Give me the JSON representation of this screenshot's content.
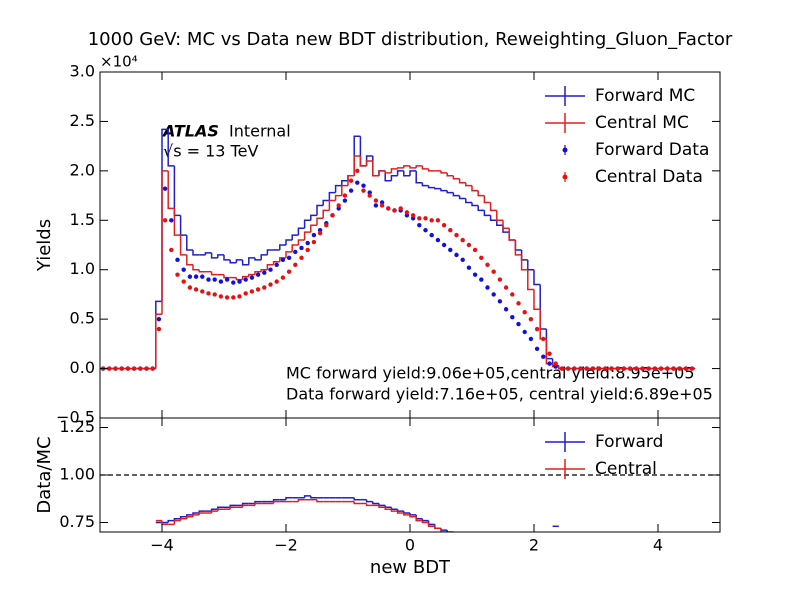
{
  "chart_data": [
    {
      "type": "histogram",
      "title": "1000 GeV: MC vs Data new BDT distribution, Reweighting_Gluon_Factor",
      "y_offset_label": "×10⁴",
      "ylabel": "Yields",
      "atlas_label": "ATLAS",
      "atlas_status": "Internal",
      "energy_label": "√s = 13 TeV",
      "annotations": [
        "MC forward yield:9.06e+05,central yield:8.95e+05",
        "Data forward yield:7.16e+05, central yield:6.89e+05"
      ],
      "legend": "upper right",
      "xlim": [
        -5,
        5
      ],
      "xticks": [
        -4,
        -2,
        0,
        2,
        4
      ],
      "ylim": [
        -0.5,
        3.0
      ],
      "yticks": [
        {
          "value": -0.5,
          "label": "−0.5"
        },
        {
          "value": 0,
          "label": "0.0"
        },
        0.5,
        {
          "value": 1,
          "label": "1.0"
        },
        1.5,
        {
          "value": 2,
          "label": "2.0"
        },
        2.5,
        {
          "value": 3,
          "label": "3.0"
        }
      ],
      "bins": [
        -5,
        -4.9,
        -4.8,
        -4.7,
        -4.6,
        -4.5,
        -4.4,
        -4.3,
        -4.2,
        -4.1,
        -4,
        -3.9,
        -3.8,
        -3.7,
        -3.6,
        -3.5,
        -3.4,
        -3.3,
        -3.2,
        -3.1,
        -3,
        -2.9,
        -2.8,
        -2.7,
        -2.6,
        -2.5,
        -2.4,
        -2.3,
        -2.2,
        -2.1,
        -2,
        -1.9,
        -1.8,
        -1.7,
        -1.6,
        -1.5,
        -1.4,
        -1.3,
        -1.2,
        -1.1,
        -1,
        -0.9,
        -0.8,
        -0.7,
        -0.6,
        -0.5,
        -0.4,
        -0.3,
        -0.2,
        -0.1,
        0,
        0.1,
        0.2,
        0.3,
        0.4,
        0.5,
        0.6,
        0.7,
        0.8,
        0.9,
        1,
        1.1,
        1.2,
        1.3,
        1.4,
        1.5,
        1.6,
        1.7,
        1.8,
        1.9,
        2,
        2.1,
        2.2,
        2.3,
        2.4,
        2.5,
        2.6,
        2.7,
        2.8,
        2.9,
        3,
        3.1,
        3.2,
        3.3,
        3.4,
        3.5,
        3.6,
        3.7,
        3.8,
        3.9,
        4,
        4.1,
        4.2,
        4.3,
        4.4,
        4.5,
        4.6,
        4.7,
        4.8,
        4.9,
        5
      ],
      "series": [
        {
          "name": "Forward MC",
          "color": "#1f1fd0",
          "style": "step",
          "values": [
            0,
            0,
            0,
            0,
            0,
            0,
            0,
            0,
            0,
            0.68,
            2.42,
            2.05,
            1.55,
            1.35,
            1.2,
            1.15,
            1.15,
            1.17,
            1.12,
            1.15,
            1.1,
            1.07,
            1.1,
            1.05,
            1.12,
            1.1,
            1.15,
            1.2,
            1.2,
            1.25,
            1.3,
            1.35,
            1.42,
            1.5,
            1.55,
            1.65,
            1.7,
            1.78,
            1.85,
            1.9,
            1.95,
            2.35,
            2.05,
            2.15,
            1.95,
            2.0,
            1.9,
            1.95,
            2.0,
            1.95,
            2.0,
            1.88,
            1.85,
            1.83,
            1.82,
            1.8,
            1.78,
            1.75,
            1.72,
            1.68,
            1.65,
            1.6,
            1.55,
            1.5,
            1.45,
            1.38,
            1.3,
            1.2,
            1.1,
            1.0,
            0.85,
            0.4,
            0.1,
            0.03,
            0,
            0,
            0,
            0,
            0,
            0,
            0,
            0,
            0,
            0,
            0,
            0,
            0,
            0,
            0,
            0,
            0,
            0,
            0,
            0,
            0,
            0
          ]
        },
        {
          "name": "Central MC",
          "color": "#e02020",
          "style": "step",
          "values": [
            0,
            0,
            0,
            0,
            0,
            0,
            0,
            0,
            0,
            0.55,
            2.0,
            1.62,
            1.35,
            1.15,
            1.05,
            1.0,
            0.98,
            0.98,
            0.95,
            0.95,
            0.92,
            0.92,
            0.9,
            0.93,
            0.95,
            0.98,
            1.0,
            1.05,
            1.08,
            1.12,
            1.18,
            1.25,
            1.3,
            1.38,
            1.45,
            1.52,
            1.6,
            1.7,
            1.75,
            1.85,
            1.95,
            2.15,
            2.05,
            2.1,
            1.95,
            2.0,
            1.98,
            2.02,
            2.03,
            2.05,
            2.03,
            2.05,
            2.02,
            2.0,
            2.0,
            1.98,
            1.95,
            1.92,
            1.88,
            1.85,
            1.8,
            1.75,
            1.68,
            1.6,
            1.5,
            1.42,
            1.3,
            1.15,
            1.0,
            0.8,
            0.6,
            0.3,
            0.05,
            0.02,
            0,
            0,
            0,
            0,
            0,
            0,
            0,
            0,
            0,
            0,
            0,
            0,
            0,
            0,
            0,
            0,
            0,
            0,
            0,
            0,
            0,
            0
          ]
        },
        {
          "name": "Forward Data",
          "color": "#1010e0",
          "style": "points",
          "values": [
            0,
            0,
            0,
            0,
            0,
            0,
            0,
            0,
            0,
            0.5,
            1.82,
            1.5,
            1.1,
            1.0,
            0.93,
            0.93,
            0.93,
            0.9,
            0.9,
            0.88,
            0.9,
            0.87,
            0.88,
            0.9,
            0.92,
            0.95,
            0.97,
            1.0,
            1.05,
            1.1,
            1.12,
            1.18,
            1.22,
            1.27,
            1.35,
            1.4,
            1.47,
            1.55,
            1.62,
            1.7,
            1.8,
            1.88,
            1.85,
            1.78,
            1.65,
            1.68,
            1.62,
            1.6,
            1.6,
            1.55,
            1.52,
            1.45,
            1.4,
            1.35,
            1.3,
            1.25,
            1.2,
            1.15,
            1.1,
            1.02,
            0.95,
            0.9,
            0.82,
            0.75,
            0.68,
            0.6,
            0.52,
            0.45,
            0.37,
            0.3,
            0.2,
            0.12,
            0.05,
            0.02,
            0,
            0,
            0,
            0,
            0,
            0,
            0,
            0,
            0,
            0,
            0,
            0,
            0,
            0,
            0,
            0,
            0,
            0,
            0,
            0,
            0,
            0
          ]
        },
        {
          "name": "Central Data",
          "color": "#e81010",
          "style": "points",
          "values": [
            0,
            0,
            0,
            0,
            0,
            0,
            0,
            0,
            0,
            0.4,
            1.5,
            1.2,
            0.95,
            0.88,
            0.82,
            0.8,
            0.78,
            0.76,
            0.75,
            0.73,
            0.72,
            0.72,
            0.73,
            0.76,
            0.78,
            0.8,
            0.82,
            0.85,
            0.88,
            0.92,
            0.98,
            1.05,
            1.12,
            1.2,
            1.28,
            1.37,
            1.45,
            1.55,
            1.65,
            1.75,
            1.9,
            2.0,
            1.8,
            1.75,
            1.7,
            1.65,
            1.62,
            1.6,
            1.62,
            1.58,
            1.55,
            1.52,
            1.52,
            1.5,
            1.5,
            1.45,
            1.4,
            1.35,
            1.3,
            1.25,
            1.2,
            1.12,
            1.05,
            0.98,
            0.9,
            0.82,
            0.75,
            0.66,
            0.57,
            0.5,
            0.4,
            0.3,
            0.15,
            0.05,
            0,
            0,
            0,
            0,
            0,
            0,
            0,
            0,
            0,
            0,
            0,
            0,
            0,
            0,
            0,
            0,
            0,
            0,
            0,
            0,
            0,
            0
          ]
        }
      ]
    },
    {
      "type": "histogram",
      "xlabel": "new BDT",
      "ylabel": "Data/MC",
      "legend": "upper right",
      "hline": 1,
      "xlim": [
        -5,
        5
      ],
      "xticks": [
        {
          "value": -4,
          "label": "−4"
        },
        {
          "value": -2,
          "label": "−2"
        },
        0,
        2,
        4
      ],
      "ylim": [
        0.7,
        1.3
      ],
      "yticks": [
        0.75,
        {
          "value": 1,
          "label": "1.00"
        },
        1.25
      ],
      "bins": [
        -5,
        -4.9,
        -4.8,
        -4.7,
        -4.6,
        -4.5,
        -4.4,
        -4.3,
        -4.2,
        -4.1,
        -4,
        -3.9,
        -3.8,
        -3.7,
        -3.6,
        -3.5,
        -3.4,
        -3.3,
        -3.2,
        -3.1,
        -3,
        -2.9,
        -2.8,
        -2.7,
        -2.6,
        -2.5,
        -2.4,
        -2.3,
        -2.2,
        -2.1,
        -2,
        -1.9,
        -1.8,
        -1.7,
        -1.6,
        -1.5,
        -1.4,
        -1.3,
        -1.2,
        -1.1,
        -1,
        -0.9,
        -0.8,
        -0.7,
        -0.6,
        -0.5,
        -0.4,
        -0.3,
        -0.2,
        -0.1,
        0,
        0.1,
        0.2,
        0.3,
        0.4,
        0.5,
        0.6,
        0.7,
        0.8,
        0.9,
        1,
        1.1,
        1.2,
        1.3,
        1.4,
        1.5,
        1.6,
        1.7,
        1.8,
        1.9,
        2,
        2.1,
        2.2,
        2.3,
        2.4,
        2.5,
        2.6,
        2.7,
        2.8,
        2.9,
        3,
        3.1,
        3.2,
        3.3,
        3.4,
        3.5,
        3.6,
        3.7,
        3.8,
        3.9,
        4,
        4.1,
        4.2,
        4.3,
        4.4,
        4.5,
        4.6,
        4.7,
        4.8,
        4.9,
        5
      ],
      "series": [
        {
          "name": "Forward",
          "color": "#1f1fd0",
          "style": "step",
          "values": [
            null,
            null,
            null,
            null,
            null,
            null,
            null,
            null,
            null,
            0.75,
            0.75,
            0.76,
            0.77,
            0.78,
            0.79,
            0.8,
            0.81,
            0.81,
            0.82,
            0.83,
            0.83,
            0.84,
            0.84,
            0.85,
            0.85,
            0.86,
            0.86,
            0.86,
            0.87,
            0.87,
            0.88,
            0.88,
            0.88,
            0.89,
            0.88,
            0.88,
            0.88,
            0.88,
            0.88,
            0.88,
            0.88,
            0.87,
            0.87,
            0.86,
            0.85,
            0.84,
            0.83,
            0.82,
            0.81,
            0.8,
            0.79,
            0.77,
            0.76,
            0.74,
            0.72,
            0.71,
            0.7,
            null,
            null,
            null,
            null,
            null,
            null,
            null,
            null,
            null,
            null,
            null,
            null,
            null,
            null,
            null,
            null,
            0.73,
            null,
            null,
            null,
            null,
            null,
            null,
            null,
            null,
            null,
            null,
            null,
            null,
            null,
            null,
            null,
            null,
            null,
            null,
            null,
            null,
            null,
            null
          ]
        },
        {
          "name": "Central",
          "color": "#e02020",
          "style": "step",
          "values": [
            null,
            null,
            null,
            null,
            null,
            null,
            null,
            null,
            null,
            0.76,
            0.74,
            0.74,
            0.76,
            0.77,
            0.78,
            0.79,
            0.8,
            0.8,
            0.81,
            0.82,
            0.82,
            0.83,
            0.83,
            0.84,
            0.84,
            0.85,
            0.85,
            0.85,
            0.86,
            0.86,
            0.86,
            0.86,
            0.87,
            0.87,
            0.87,
            0.86,
            0.86,
            0.86,
            0.86,
            0.86,
            0.86,
            0.85,
            0.85,
            0.84,
            0.84,
            0.83,
            0.82,
            0.81,
            0.8,
            0.79,
            0.78,
            0.76,
            0.75,
            0.73,
            0.72,
            0.7,
            0.69,
            null,
            null,
            null,
            null,
            null,
            null,
            null,
            null,
            null,
            null,
            null,
            null,
            null,
            null,
            null,
            null,
            null,
            null,
            null,
            null,
            null,
            null,
            null,
            null,
            null,
            null,
            null,
            null,
            null,
            null,
            null,
            null,
            null,
            null,
            null,
            null,
            null,
            null,
            null
          ]
        }
      ]
    }
  ]
}
